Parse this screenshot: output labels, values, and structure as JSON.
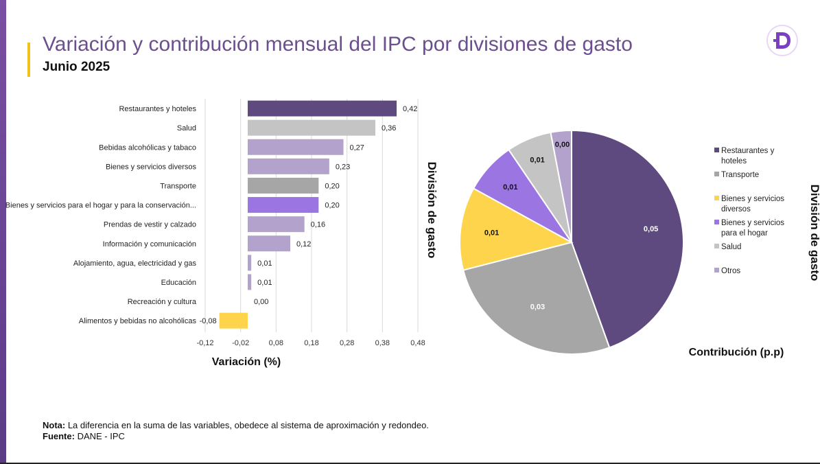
{
  "header": {
    "title": "Variación  y contribución mensual del IPC por divisiones de gasto",
    "subtitle": "Junio 2025",
    "logo_icon": "dane-d-logo",
    "brand_color": "#7b3fc4"
  },
  "chart_data": [
    {
      "type": "bar",
      "orientation": "horizontal",
      "categories": [
        "Restaurantes y hoteles",
        "Salud",
        "Bebidas alcohólicas y tabaco",
        "Bienes y servicios diversos",
        "Transporte",
        "Bienes y servicios para el hogar y para la conservación...",
        "Prendas de vestir y calzado",
        "Información y comunicación",
        "Alojamiento, agua, electricidad y gas",
        "Educación",
        "Recreación y cultura",
        "Alimentos y bebidas no alcohólicas"
      ],
      "values": [
        0.42,
        0.36,
        0.27,
        0.23,
        0.2,
        0.2,
        0.16,
        0.12,
        0.01,
        0.01,
        0.0,
        -0.08
      ],
      "value_labels": [
        "0,42",
        "0,36",
        "0,27",
        "0,23",
        "0,20",
        "0,20",
        "0,16",
        "0,12",
        "0,01",
        "0,01",
        "0,00",
        "-0,08"
      ],
      "colors": [
        "#5e4a7e",
        "#c4c4c4",
        "#b3a2cc",
        "#b3a2cc",
        "#a6a6a6",
        "#9b76e3",
        "#b3a2cc",
        "#b3a2cc",
        "#b3a2cc",
        "#b3a2cc",
        "#b3a2cc",
        "#ffd44d"
      ],
      "xlim": [
        -0.12,
        0.48
      ],
      "xticks": [
        -0.12,
        -0.02,
        0.08,
        0.18,
        0.28,
        0.38,
        0.48
      ],
      "xtick_labels": [
        "-0,12",
        "-0,02",
        "0,08",
        "0,18",
        "0,28",
        "0,38",
        "0,48"
      ],
      "xlabel": "Variación (%)",
      "ylabel": "División de gasto",
      "grid": true
    },
    {
      "type": "pie",
      "labels": [
        "Restaurantes y hoteles",
        "Transporte",
        "Bienes y servicios diversos",
        "Bienes y servicios para el hogar",
        "Salud",
        "Otros"
      ],
      "values": [
        0.05,
        0.03,
        0.01,
        0.01,
        0.01,
        0.0
      ],
      "shares": [
        0.445,
        0.265,
        0.12,
        0.075,
        0.065,
        0.03
      ],
      "value_labels": [
        "0,05",
        "0,03",
        "0,01",
        "0,01",
        "0,01",
        "0,00"
      ],
      "colors": [
        "#5e4a7e",
        "#a6a6a6",
        "#ffd44d",
        "#9b76e3",
        "#c4c4c4",
        "#b3a2cc"
      ],
      "title": "Contribución (p.p)",
      "legend_title": "División de gasto",
      "legend_position": "right"
    }
  ],
  "notes": {
    "nota_label": "Nota:",
    "nota_text": " La diferencia en la suma de las variables, obedece al sistema de aproximación y redondeo.",
    "fuente_label": "Fuente:",
    "fuente_text": " DANE - IPC"
  }
}
